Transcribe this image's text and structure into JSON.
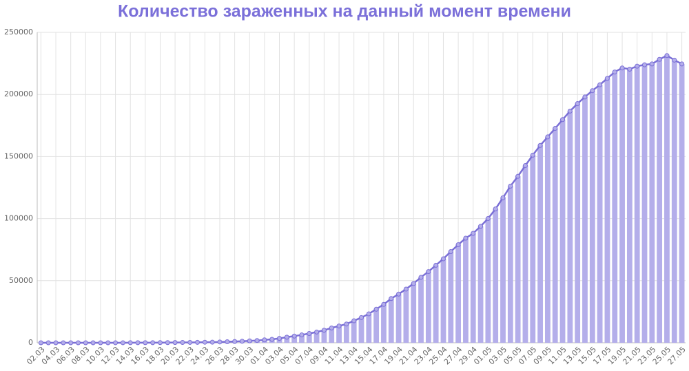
{
  "chart_data": {
    "type": "bar_line",
    "title": "Количество зараженных на данный момент времени",
    "categories": [
      "02.03",
      null,
      "04.03",
      null,
      "06.03",
      null,
      "08.03",
      null,
      "10.03",
      null,
      "12.03",
      null,
      "14.03",
      null,
      "16.03",
      null,
      "18.03",
      null,
      "20.03",
      null,
      "22.03",
      null,
      "24.03",
      null,
      "26.03",
      null,
      "28.03",
      null,
      "30.03",
      null,
      "01.04",
      null,
      "03.04",
      null,
      "05.04",
      null,
      "07.04",
      null,
      "09.04",
      null,
      "11.04",
      null,
      "13.04",
      null,
      "15.04",
      null,
      "17.04",
      null,
      "19.04",
      null,
      "21.04",
      null,
      "23.04",
      null,
      "25.04",
      null,
      "27.04",
      null,
      "29.04",
      null,
      "01.05",
      null,
      "03.05",
      null,
      "05.05",
      null,
      "07.05",
      null,
      "09.05",
      null,
      "11.05",
      null,
      "13.05",
      null,
      "15.05",
      null,
      "17.05",
      null,
      "19.05",
      null,
      "21.05",
      null,
      "23.05",
      null,
      "25.05",
      null,
      "27.05"
    ],
    "values": [
      3,
      3,
      3,
      4,
      7,
      10,
      13,
      16,
      17,
      20,
      28,
      34,
      45,
      59,
      63,
      90,
      114,
      147,
      199,
      253,
      306,
      367,
      438,
      495,
      658,
      840,
      1036,
      1264,
      1534,
      1836,
      2337,
      2777,
      3548,
      4484,
      5389,
      6343,
      7497,
      8672,
      10131,
      11917,
      13512,
      15131,
      17713,
      20328,
      23310,
      27035,
      30938,
      35602,
      39201,
      43270,
      47711,
      52763,
      57327,
      62439,
      67657,
      73435,
      79007,
      84235,
      88141,
      93806,
      100042,
      107819,
      116768,
      126150,
      134054,
      142711,
      151101,
      158957,
      165786,
      172643,
      179726,
      186615,
      192598,
      197972,
      203052,
      207777,
      212925,
      218091,
      221344,
      220341,
      222786,
      223883,
      224551,
      228238,
      231300,
      227641,
      224551
    ],
    "color": "#b4aeea",
    "line_color": "#7a6fd6",
    "ylim": [
      0,
      250000
    ],
    "yticks": [
      0,
      50000,
      100000,
      150000,
      200000,
      250000
    ],
    "grid": true
  }
}
